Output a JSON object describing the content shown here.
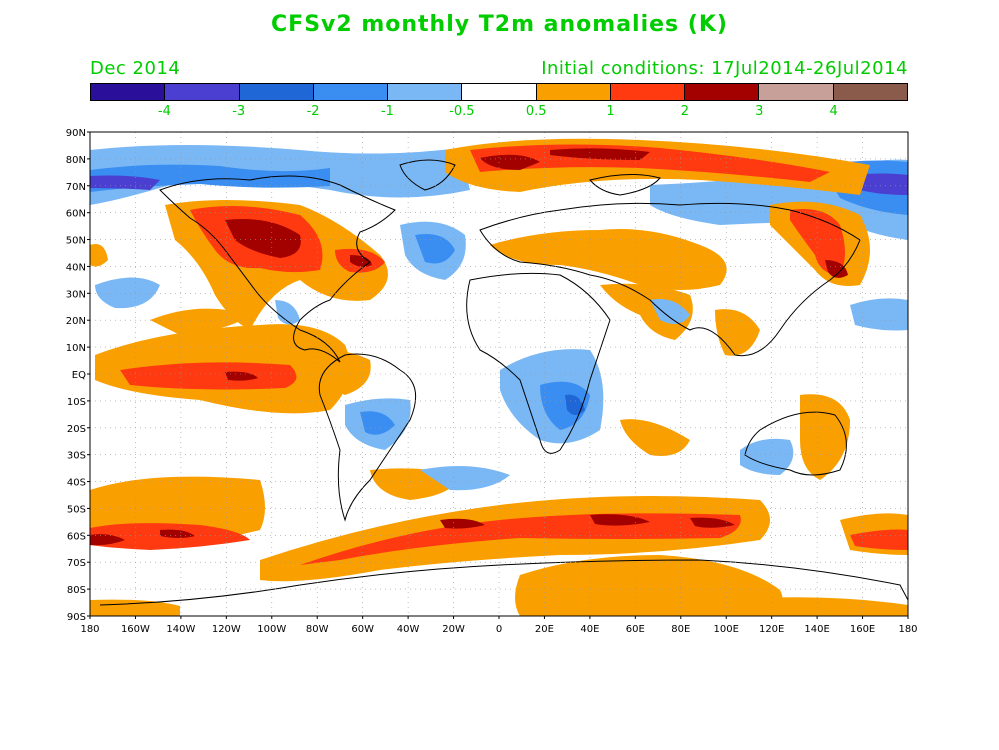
{
  "header": {
    "title": "CFSv2 monthly T2m anomalies (K)",
    "valid_month": "Dec 2014",
    "initial_conditions": "Initial conditions: 17Jul2014-26Jul2014"
  },
  "colorbar": {
    "colors": [
      "#2a0f9a",
      "#4a3fd0",
      "#1f66d6",
      "#3a8ef2",
      "#7ab8f5",
      "#ffffff",
      "#f9a000",
      "#ff3a10",
      "#a30000",
      "#c8a09a",
      "#8a5a4a"
    ],
    "labels": [
      "-4",
      "-3",
      "-2",
      "-1",
      "-0.5",
      "0.5",
      "1",
      "2",
      "3",
      "4"
    ]
  },
  "axes": {
    "lat_labels": [
      "90N",
      "80N",
      "70N",
      "60N",
      "50N",
      "40N",
      "30N",
      "20N",
      "10N",
      "EQ",
      "10S",
      "20S",
      "30S",
      "40S",
      "50S",
      "60S",
      "70S",
      "80S",
      "90S"
    ],
    "lon_labels": [
      "180",
      "160W",
      "140W",
      "120W",
      "100W",
      "80W",
      "60W",
      "40W",
      "20W",
      "0",
      "20E",
      "40E",
      "60E",
      "80E",
      "100E",
      "120E",
      "140E",
      "160E",
      "180"
    ]
  }
}
